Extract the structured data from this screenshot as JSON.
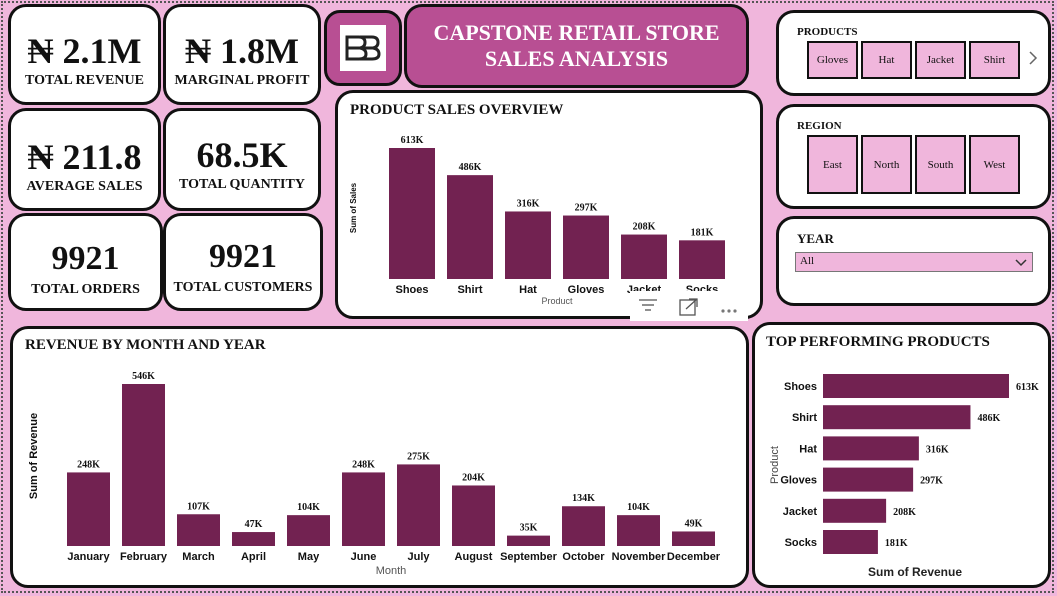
{
  "kpis": {
    "revenue": {
      "value": "₦ 2.1M",
      "label": "TOTAL REVENUE"
    },
    "profit": {
      "value": "₦ 1.8M",
      "label": "MARGINAL PROFIT"
    },
    "avg_sales": {
      "value": "₦ 211.8",
      "label": "AVERAGE SALES"
    },
    "quantity": {
      "value": "68.5K",
      "label": "TOTAL QUANTITY"
    },
    "orders": {
      "value": "9921",
      "label": "TOTAL ORDERS"
    },
    "customers": {
      "value": "9921",
      "label": "TOTAL CUSTOMERS"
    }
  },
  "title": {
    "line1": "CAPSTONE RETAIL STORE",
    "line2": "SALES ANALYSIS"
  },
  "logo_icon": "bb-logo-icon",
  "slicers": {
    "products": {
      "title": "PRODUCTS",
      "items": [
        "Gloves",
        "Hat",
        "Jacket",
        "Shirt"
      ],
      "more_icon": "chevron-right-icon"
    },
    "region": {
      "title": "REGION",
      "items": [
        "East",
        "North",
        "South",
        "West"
      ]
    },
    "year": {
      "title": "YEAR",
      "selected": "All",
      "dropdown_icon": "chevron-down-icon"
    }
  },
  "visual_toolbar": {
    "icons": [
      "filter-icon",
      "focus-mode-icon",
      "more-options-icon"
    ]
  },
  "colors": {
    "bar": "#722251",
    "chip": "#f0b6dc",
    "background": "#f0b6dc",
    "title_bg": "#b84f93"
  },
  "chart_data": [
    {
      "id": "product_sales",
      "type": "bar",
      "title": "PRODUCT SALES OVERVIEW",
      "xlabel": "Product",
      "ylabel": "Sum of Sales",
      "categories": [
        "Shoes",
        "Shirt",
        "Hat",
        "Gloves",
        "Jacket",
        "Socks"
      ],
      "values": [
        613,
        486,
        316,
        297,
        208,
        181
      ],
      "data_labels": [
        "613K",
        "486K",
        "316K",
        "297K",
        "208K",
        "181K"
      ],
      "unit": "K"
    },
    {
      "id": "revenue_month",
      "type": "bar",
      "title": "REVENUE BY MONTH AND YEAR",
      "xlabel": "Month",
      "ylabel": "Sum of Revenue",
      "categories": [
        "January",
        "February",
        "March",
        "April",
        "May",
        "June",
        "July",
        "August",
        "September",
        "October",
        "November",
        "December"
      ],
      "values": [
        248,
        546,
        107,
        47,
        104,
        248,
        275,
        204,
        35,
        134,
        104,
        49
      ],
      "data_labels": [
        "248K",
        "546K",
        "107K",
        "47K",
        "104K",
        "248K",
        "275K",
        "204K",
        "35K",
        "134K",
        "104K",
        "49K"
      ],
      "unit": "K"
    },
    {
      "id": "top_products",
      "type": "bar",
      "orientation": "horizontal",
      "title": "TOP PERFORMING PRODUCTS",
      "xlabel": "Sum of Revenue",
      "ylabel": "Product",
      "categories": [
        "Shoes",
        "Shirt",
        "Hat",
        "Gloves",
        "Jacket",
        "Socks"
      ],
      "values": [
        613,
        486,
        316,
        297,
        208,
        181
      ],
      "data_labels": [
        "613K",
        "486K",
        "316K",
        "297K",
        "208K",
        "181K"
      ],
      "unit": "K"
    }
  ]
}
